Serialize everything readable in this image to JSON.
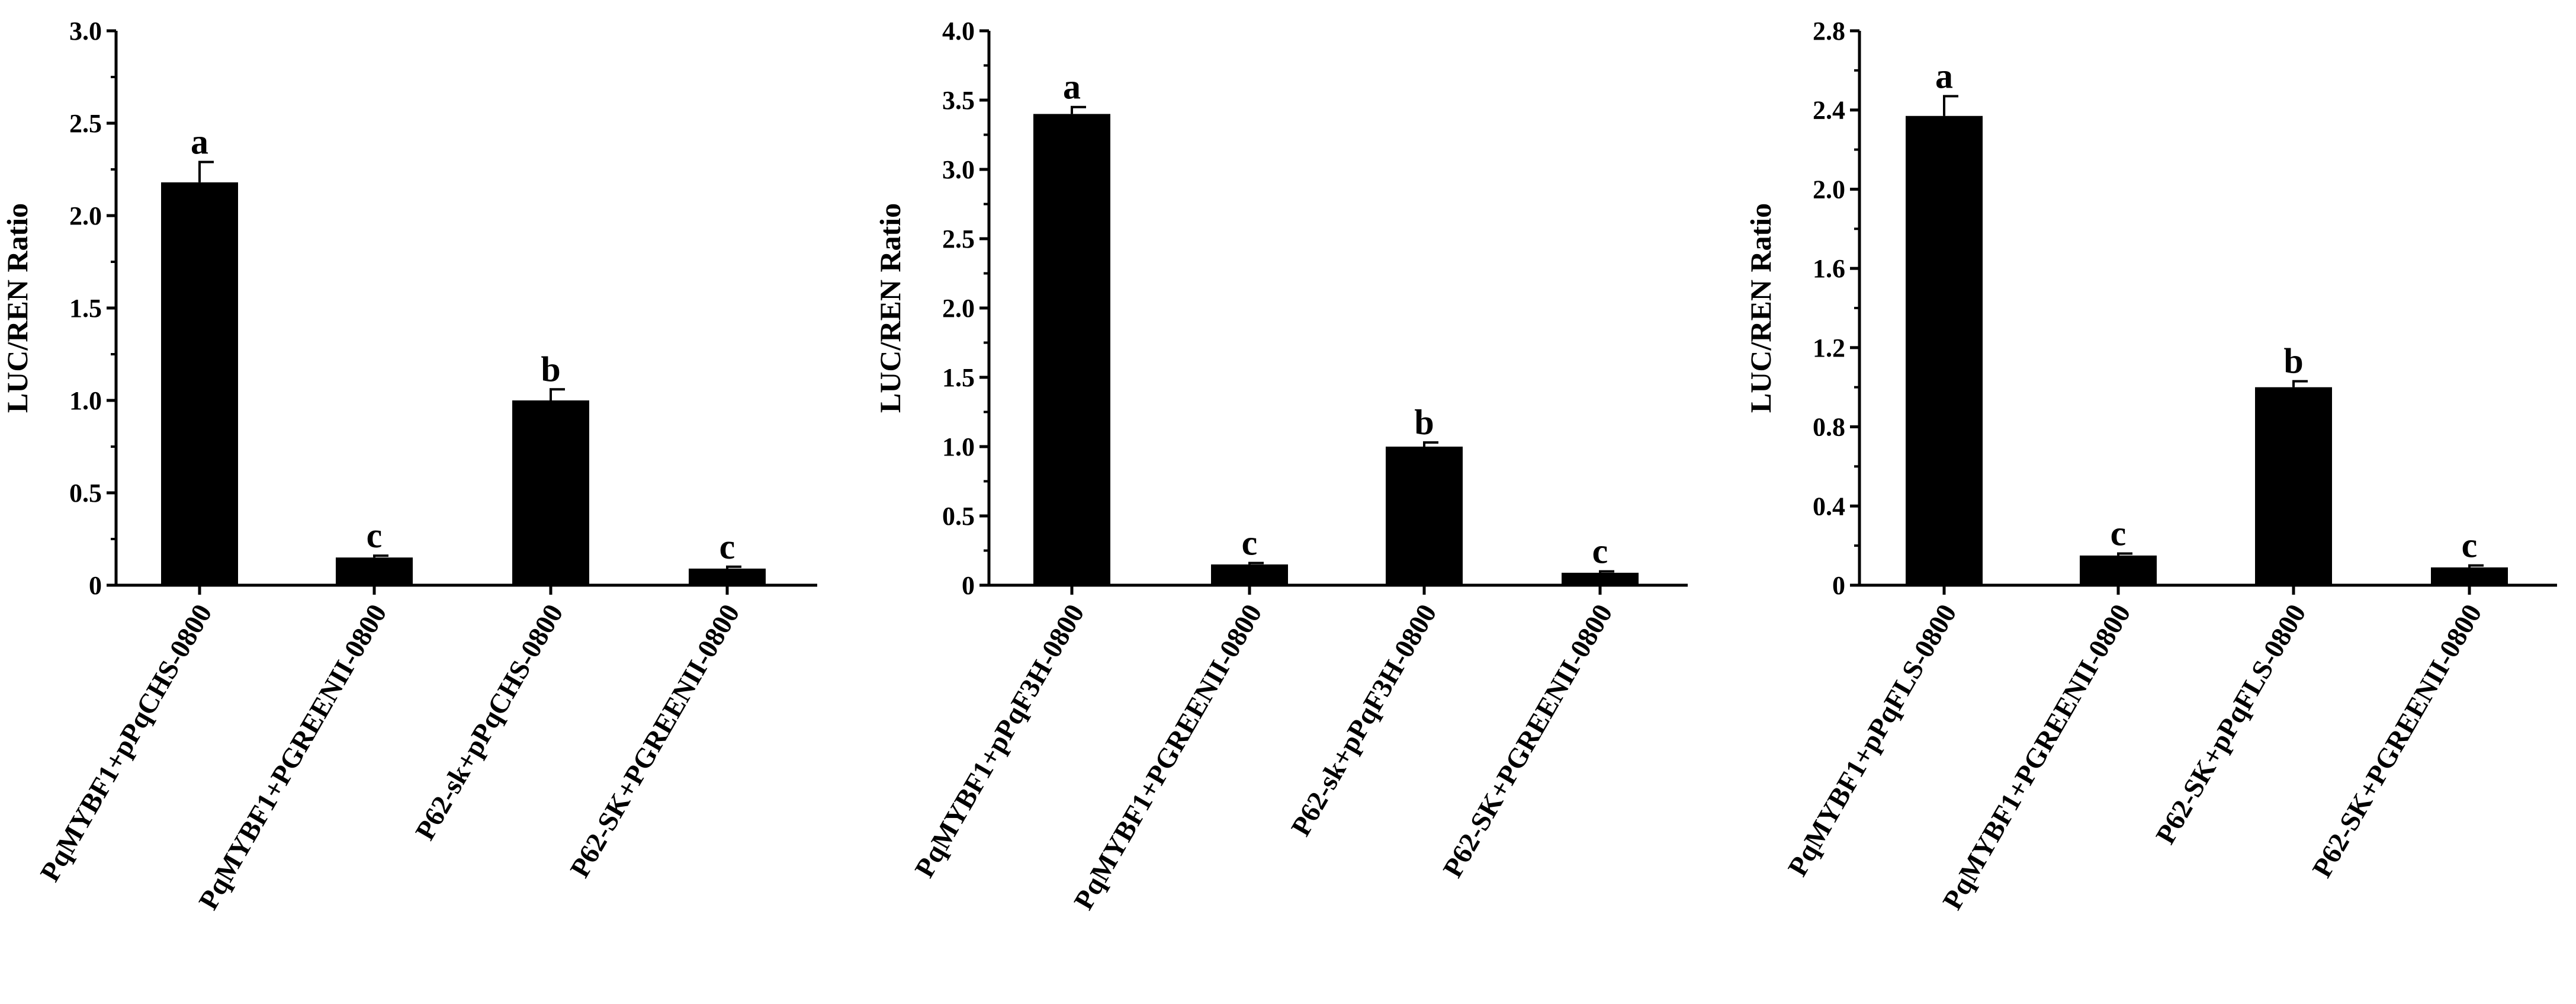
{
  "chart_data": [
    {
      "type": "bar",
      "ylabel": "LUC/REN Ratio",
      "ylim": [
        0,
        3.0
      ],
      "yticks": [
        "0",
        "0.5",
        "1.0",
        "1.5",
        "2.0",
        "2.5",
        "3.0"
      ],
      "categories": [
        "PqMYBF1+pPqCHS-0800",
        "PqMYBF1+PGREENII-0800",
        "P62-sk+pPqCHS-0800",
        "P62-SK+PGREENII-0800"
      ],
      "values": [
        2.18,
        0.15,
        1.0,
        0.09
      ],
      "errors": [
        0.11,
        0.01,
        0.06,
        0.01
      ],
      "significance": [
        "a",
        "c",
        "b",
        "c"
      ],
      "bar_color": "#000000"
    },
    {
      "type": "bar",
      "ylabel": "LUC/REN Ratio",
      "ylim": [
        0,
        4.0
      ],
      "yticks": [
        "0",
        "0.5",
        "1.0",
        "1.5",
        "2.0",
        "2.5",
        "3.0",
        "3.5",
        "4.0"
      ],
      "categories": [
        "PqMYBF1+pPqF3H-0800",
        "PqMYBF1+PGREENII-0800",
        "P62-sk+pPqF3H-0800",
        "P62-SK+PGREENII-0800"
      ],
      "values": [
        3.4,
        0.15,
        1.0,
        0.09
      ],
      "errors": [
        0.05,
        0.01,
        0.03,
        0.01
      ],
      "significance": [
        "a",
        "c",
        "b",
        "c"
      ],
      "bar_color": "#000000"
    },
    {
      "type": "bar",
      "ylabel": "LUC/REN Ratio",
      "ylim": [
        0,
        2.8
      ],
      "yticks": [
        "0",
        "0.4",
        "0.8",
        "1.2",
        "1.6",
        "2.0",
        "2.4",
        "2.8"
      ],
      "categories": [
        "PqMYBF1+pPqFLS-0800",
        "PqMYBF1+PGREENII-0800",
        "P62-SK+pPqFLS-0800",
        "P62-SK+PGREENII-0800"
      ],
      "values": [
        2.37,
        0.15,
        1.0,
        0.09
      ],
      "errors": [
        0.1,
        0.01,
        0.03,
        0.01
      ],
      "significance": [
        "a",
        "c",
        "b",
        "c"
      ],
      "bar_color": "#000000"
    }
  ]
}
